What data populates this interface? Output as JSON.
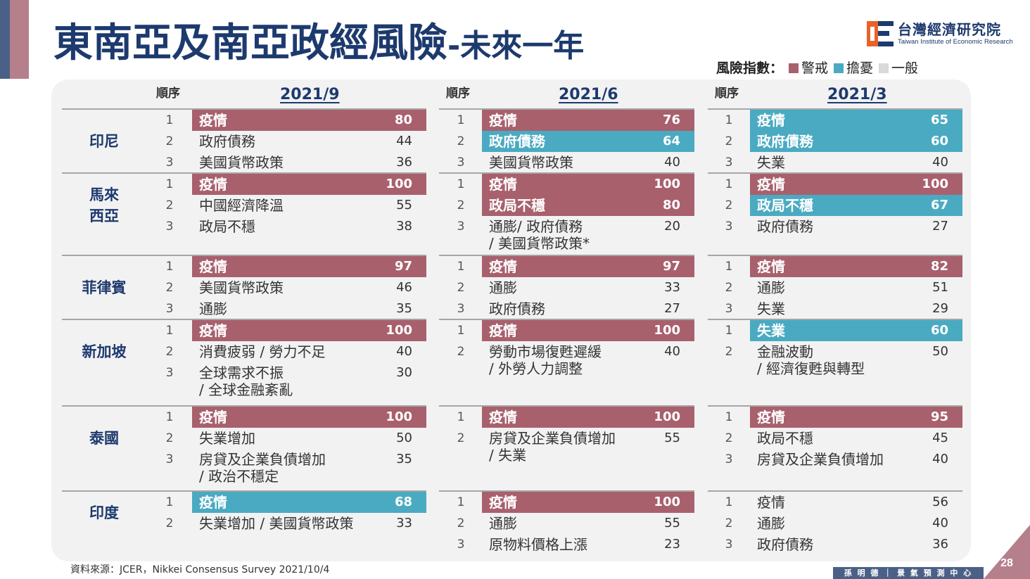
{
  "title": {
    "main": "東南亞及南亞政經風險",
    "sub": "-未來一年"
  },
  "logo": {
    "name_zh": "台灣經濟研究院",
    "name_en": "Taiwan Institute of Economic Research"
  },
  "legend": {
    "title": "風險指數：",
    "items": [
      {
        "label": "警戒",
        "color": "#a8606d"
      },
      {
        "label": "擔憂",
        "color": "#4aaac2"
      },
      {
        "label": "一般",
        "color": "#d9d9d9"
      }
    ]
  },
  "rank_header": "順序",
  "periods": [
    "2021/9",
    "2021/6",
    "2021/3"
  ],
  "countries": [
    {
      "name": "印尼",
      "periods": [
        [
          {
            "rank": "1",
            "label": "疫情",
            "value": "80",
            "level": "alert"
          },
          {
            "rank": "2",
            "label": "政府債務",
            "value": "44",
            "level": "normal"
          },
          {
            "rank": "3",
            "label": "美國貨幣政策",
            "value": "36",
            "level": "normal"
          }
        ],
        [
          {
            "rank": "1",
            "label": "疫情",
            "value": "76",
            "level": "alert"
          },
          {
            "rank": "2",
            "label": "政府債務",
            "value": "64",
            "level": "worry"
          },
          {
            "rank": "3",
            "label": "美國貨幣政策",
            "value": "40",
            "level": "normal"
          }
        ],
        [
          {
            "rank": "1",
            "label": "疫情",
            "value": "65",
            "level": "worry"
          },
          {
            "rank": "2",
            "label": "政府債務",
            "value": "60",
            "level": "worry"
          },
          {
            "rank": "3",
            "label": "失業",
            "value": "40",
            "level": "normal"
          }
        ]
      ]
    },
    {
      "name": "馬來\n西亞",
      "periods": [
        [
          {
            "rank": "1",
            "label": "疫情",
            "value": "100",
            "level": "alert"
          },
          {
            "rank": "2",
            "label": "中國經濟降溫",
            "value": "55",
            "level": "normal"
          },
          {
            "rank": "3",
            "label": "政局不穩",
            "value": "38",
            "level": "normal"
          }
        ],
        [
          {
            "rank": "1",
            "label": "疫情",
            "value": "100",
            "level": "alert"
          },
          {
            "rank": "2",
            "label": "政局不穩",
            "value": "80",
            "level": "alert"
          },
          {
            "rank": "3",
            "label": "通膨/ 政府債務",
            "label2": "/ 美國貨幣政策*",
            "value": "20",
            "level": "normal"
          }
        ],
        [
          {
            "rank": "1",
            "label": "疫情",
            "value": "100",
            "level": "alert"
          },
          {
            "rank": "2",
            "label": "政局不穩",
            "value": "67",
            "level": "worry"
          },
          {
            "rank": "3",
            "label": "政府債務",
            "value": "27",
            "level": "normal"
          }
        ]
      ]
    },
    {
      "name": "菲律賓",
      "periods": [
        [
          {
            "rank": "1",
            "label": "疫情",
            "value": "97",
            "level": "alert"
          },
          {
            "rank": "2",
            "label": "美國貨幣政策",
            "value": "46",
            "level": "normal"
          },
          {
            "rank": "3",
            "label": "通膨",
            "value": "35",
            "level": "normal"
          }
        ],
        [
          {
            "rank": "1",
            "label": "疫情",
            "value": "97",
            "level": "alert"
          },
          {
            "rank": "2",
            "label": "通膨",
            "value": "33",
            "level": "normal"
          },
          {
            "rank": "3",
            "label": "政府債務",
            "value": "27",
            "level": "normal"
          }
        ],
        [
          {
            "rank": "1",
            "label": "疫情",
            "value": "82",
            "level": "alert"
          },
          {
            "rank": "2",
            "label": "通膨",
            "value": "51",
            "level": "normal"
          },
          {
            "rank": "3",
            "label": "失業",
            "value": "29",
            "level": "normal"
          }
        ]
      ]
    },
    {
      "name": "新加坡",
      "periods": [
        [
          {
            "rank": "1",
            "label": "疫情",
            "value": "100",
            "level": "alert"
          },
          {
            "rank": "2",
            "label": "消費疲弱 / 勞力不足",
            "value": "40",
            "level": "normal"
          },
          {
            "rank": "3",
            "label": "全球需求不振",
            "label2": "/ 全球金融紊亂",
            "value": "30",
            "level": "normal"
          }
        ],
        [
          {
            "rank": "1",
            "label": "疫情",
            "value": "100",
            "level": "alert"
          },
          {
            "rank": "2",
            "label": "勞動市場復甦遲緩",
            "label2": "/ 外勞人力調整",
            "value": "40",
            "level": "normal"
          }
        ],
        [
          {
            "rank": "1",
            "label": "失業",
            "value": "60",
            "level": "worry"
          },
          {
            "rank": "2",
            "label": "金融波動",
            "label2": "/ 經濟復甦與轉型",
            "value": "50",
            "level": "normal"
          }
        ]
      ]
    },
    {
      "name": "泰國",
      "periods": [
        [
          {
            "rank": "1",
            "label": "疫情",
            "value": "100",
            "level": "alert"
          },
          {
            "rank": "2",
            "label": "失業增加",
            "value": "50",
            "level": "normal"
          },
          {
            "rank": "3",
            "label": "房貸及企業負債增加",
            "label2": "/ 政治不穩定",
            "value": "35",
            "level": "normal"
          }
        ],
        [
          {
            "rank": "1",
            "label": "疫情",
            "value": "100",
            "level": "alert"
          },
          {
            "rank": "2",
            "label": "房貸及企業負債增加",
            "label2": "/ 失業",
            "value": "55",
            "level": "normal"
          }
        ],
        [
          {
            "rank": "1",
            "label": "疫情",
            "value": "95",
            "level": "alert"
          },
          {
            "rank": "2",
            "label": "政局不穩",
            "value": "45",
            "level": "normal"
          },
          {
            "rank": "3",
            "label": "房貸及企業負債增加",
            "value": "40",
            "level": "normal"
          }
        ]
      ]
    },
    {
      "name": "印度",
      "periods": [
        [
          {
            "rank": "1",
            "label": "疫情",
            "value": "68",
            "level": "worry"
          },
          {
            "rank": "2",
            "label": "失業增加 / 美國貨幣政策",
            "value": "33",
            "level": "normal"
          }
        ],
        [
          {
            "rank": "1",
            "label": "疫情",
            "value": "100",
            "level": "alert"
          },
          {
            "rank": "2",
            "label": "通膨",
            "value": "55",
            "level": "normal"
          },
          {
            "rank": "3",
            "label": "原物料價格上漲",
            "value": "23",
            "level": "normal"
          }
        ],
        [
          {
            "rank": "1",
            "label": "疫情",
            "value": "56",
            "level": "normal"
          },
          {
            "rank": "2",
            "label": "通膨",
            "value": "40",
            "level": "normal"
          },
          {
            "rank": "3",
            "label": "政府債務",
            "value": "36",
            "level": "normal"
          }
        ]
      ]
    }
  ],
  "source": "資料來源：JCER，Nikkei Consensus Survey 2021/10/4",
  "footer": {
    "org": "孫 明 德 ｜ 景 氣 預 測 中 心",
    "page": "28"
  }
}
